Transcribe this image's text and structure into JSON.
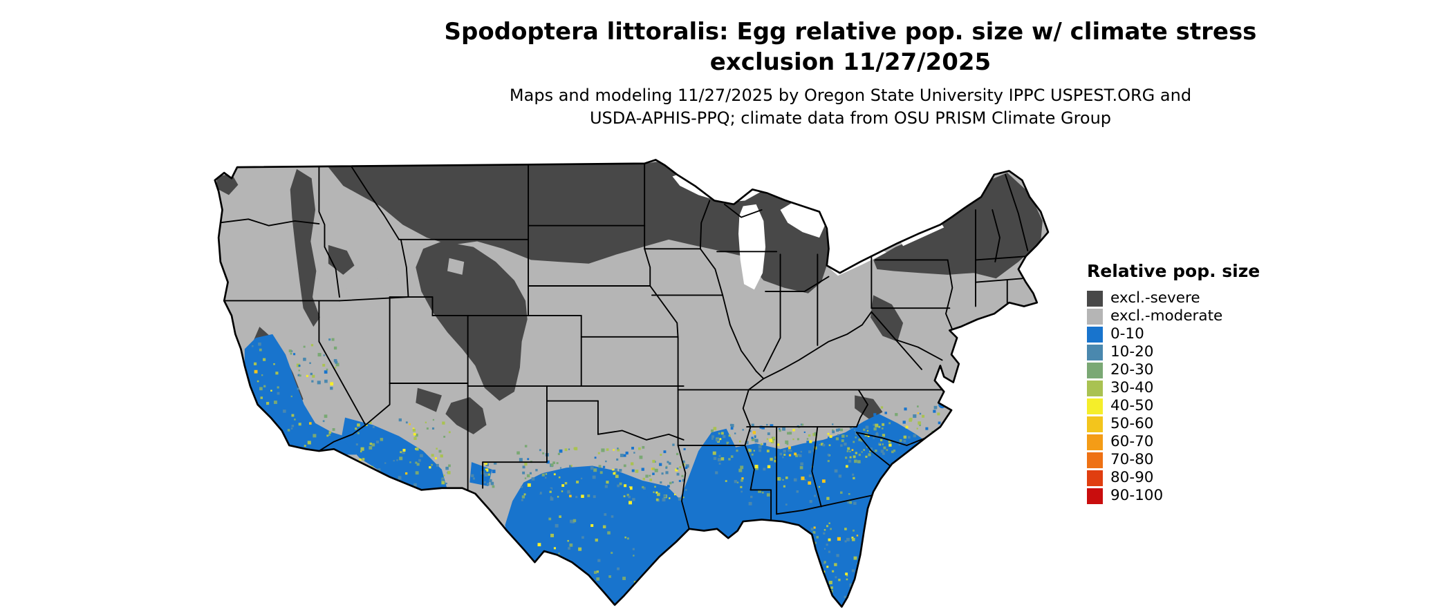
{
  "header": {
    "title_line1": "Spodoptera littoralis: Egg relative pop. size w/ climate stress",
    "title_line2": "exclusion 11/27/2025",
    "subtitle_line1": "Maps and modeling 11/27/2025 by Oregon State University IPPC USPEST.ORG and",
    "subtitle_line2": "USDA-APHIS-PPQ; climate data from OSU PRISM Climate Group"
  },
  "legend": {
    "title": "Relative pop. size",
    "items": [
      {
        "label": "excl.-severe",
        "color_key": "severe"
      },
      {
        "label": "excl.-moderate",
        "color_key": "moderate"
      },
      {
        "label": "0-10",
        "color_key": "r0_10"
      },
      {
        "label": "10-20",
        "color_key": "r10_20"
      },
      {
        "label": "20-30",
        "color_key": "r20_30"
      },
      {
        "label": "30-40",
        "color_key": "r30_40"
      },
      {
        "label": "40-50",
        "color_key": "r40_50"
      },
      {
        "label": "50-60",
        "color_key": "r50_60"
      },
      {
        "label": "60-70",
        "color_key": "r60_70"
      },
      {
        "label": "70-80",
        "color_key": "r70_80"
      },
      {
        "label": "80-90",
        "color_key": "r80_90"
      },
      {
        "label": "90-100",
        "color_key": "r90_100"
      }
    ]
  },
  "colors": {
    "severe": "#484848",
    "moderate": "#b5b5b5",
    "r0_10": "#1874cd",
    "r10_20": "#4a88ae",
    "r20_30": "#7aa874",
    "r30_40": "#a9c252",
    "r40_50": "#f5ee2a",
    "r50_60": "#f3c51c",
    "r60_70": "#f49c16",
    "r70_80": "#ee7114",
    "r80_90": "#e03e10",
    "r90_100": "#c90d0d"
  }
}
